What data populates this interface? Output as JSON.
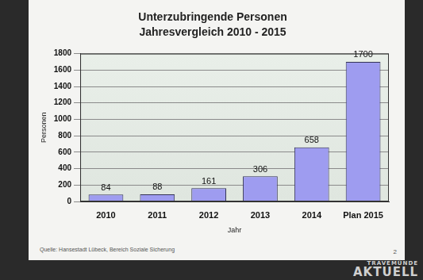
{
  "chart_data": {
    "type": "bar",
    "title": "Unterzubringende Personen",
    "subtitle": "Jahresvergleich 2010 - 2015",
    "x_label": "Jahr",
    "y_label": "Personen",
    "categories": [
      "2010",
      "2011",
      "2012",
      "2013",
      "2014",
      "Plan 2015"
    ],
    "values": [
      84,
      88,
      161,
      306,
      658,
      1700
    ],
    "color": "#9e9cf0",
    "ylim": [
      0,
      1800
    ],
    "yticks": [
      0,
      200,
      400,
      600,
      800,
      1000,
      1200,
      1400,
      1600,
      1800
    ],
    "grid": true,
    "data_labels": true
  },
  "slide": {
    "source": "Quelle: Hansestadt Lübeck, Bereich Soziale Sicherung",
    "page_number": "2"
  },
  "watermark": [
    "TRAVEMÜNDE",
    "AKTUELL"
  ]
}
